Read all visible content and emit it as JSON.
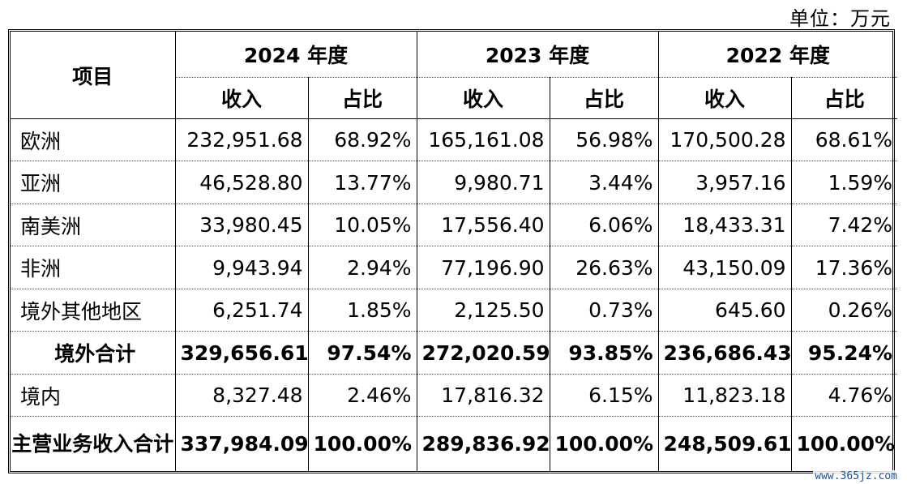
{
  "unit_label": "单位：万元",
  "header": {
    "item": "项目",
    "years": [
      "2024 年度",
      "2023 年度",
      "2022 年度"
    ],
    "revenue": "收入",
    "ratio": "占比"
  },
  "rows": [
    {
      "label": "欧洲",
      "values": [
        "232,951.68",
        "68.92%",
        "165,161.08",
        "56.98%",
        "170,500.28",
        "68.61%"
      ]
    },
    {
      "label": "亚洲",
      "values": [
        "46,528.80",
        "13.77%",
        "9,980.71",
        "3.44%",
        "3,957.16",
        "1.59%"
      ]
    },
    {
      "label": "南美洲",
      "values": [
        "33,980.45",
        "10.05%",
        "17,556.40",
        "6.06%",
        "18,433.31",
        "7.42%"
      ]
    },
    {
      "label": "非洲",
      "values": [
        "9,943.94",
        "2.94%",
        "77,196.90",
        "26.63%",
        "43,150.09",
        "17.36%"
      ]
    },
    {
      "label": "境外其他地区",
      "values": [
        "6,251.74",
        "1.85%",
        "2,125.50",
        "0.73%",
        "645.60",
        "0.26%"
      ]
    },
    {
      "label": "境外合计",
      "values": [
        "329,656.61",
        "97.54%",
        "272,020.59",
        "93.85%",
        "236,686.43",
        "95.24%"
      ]
    },
    {
      "label": "境内",
      "values": [
        "8,327.48",
        "2.46%",
        "17,816.32",
        "6.15%",
        "11,823.18",
        "4.76%"
      ]
    },
    {
      "label": "主营业务收入合计",
      "values": [
        "337,984.09",
        "100.00%",
        "289,836.92",
        "100.00%",
        "248,509.61",
        "100.00%"
      ]
    }
  ],
  "watermark": "www.365jz.com"
}
